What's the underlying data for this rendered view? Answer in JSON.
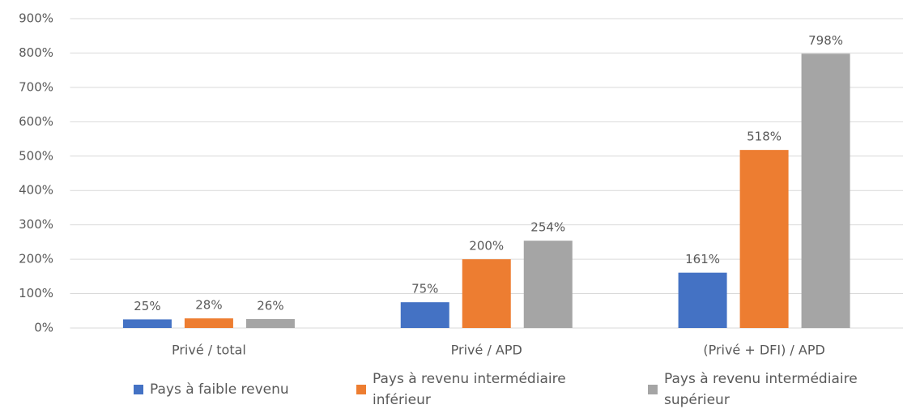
{
  "chart_data": {
    "type": "bar",
    "categories": [
      "Privé / total",
      "Privé / APD",
      "(Privé + DFI) / APD"
    ],
    "series": [
      {
        "name": "Pays à faible revenu",
        "color": "#4472c4",
        "values": [
          25,
          75,
          161
        ],
        "value_labels": [
          "25%",
          "75%",
          "161%"
        ]
      },
      {
        "name": "Pays à revenu intermédiaire inférieur",
        "color": "#ed7d31",
        "values": [
          28,
          200,
          518
        ],
        "value_labels": [
          "28%",
          "200%",
          "518%"
        ]
      },
      {
        "name": "Pays à revenu intermédiaire supérieur",
        "color": "#a5a5a5",
        "values": [
          26,
          254,
          798
        ],
        "value_labels": [
          "26%",
          "254%",
          "798%"
        ]
      }
    ],
    "ylim": [
      0,
      900
    ],
    "yticks": [
      {
        "value": 0,
        "label": "0%"
      },
      {
        "value": 100,
        "label": "100%"
      },
      {
        "value": 200,
        "label": "200%"
      },
      {
        "value": 300,
        "label": "300%"
      },
      {
        "value": 400,
        "label": "400%"
      },
      {
        "value": 500,
        "label": "500%"
      },
      {
        "value": 600,
        "label": "600%"
      },
      {
        "value": 700,
        "label": "700%"
      },
      {
        "value": 800,
        "label": "800%"
      },
      {
        "value": 900,
        "label": "900%"
      }
    ],
    "grid": true,
    "legend": "bottom"
  }
}
